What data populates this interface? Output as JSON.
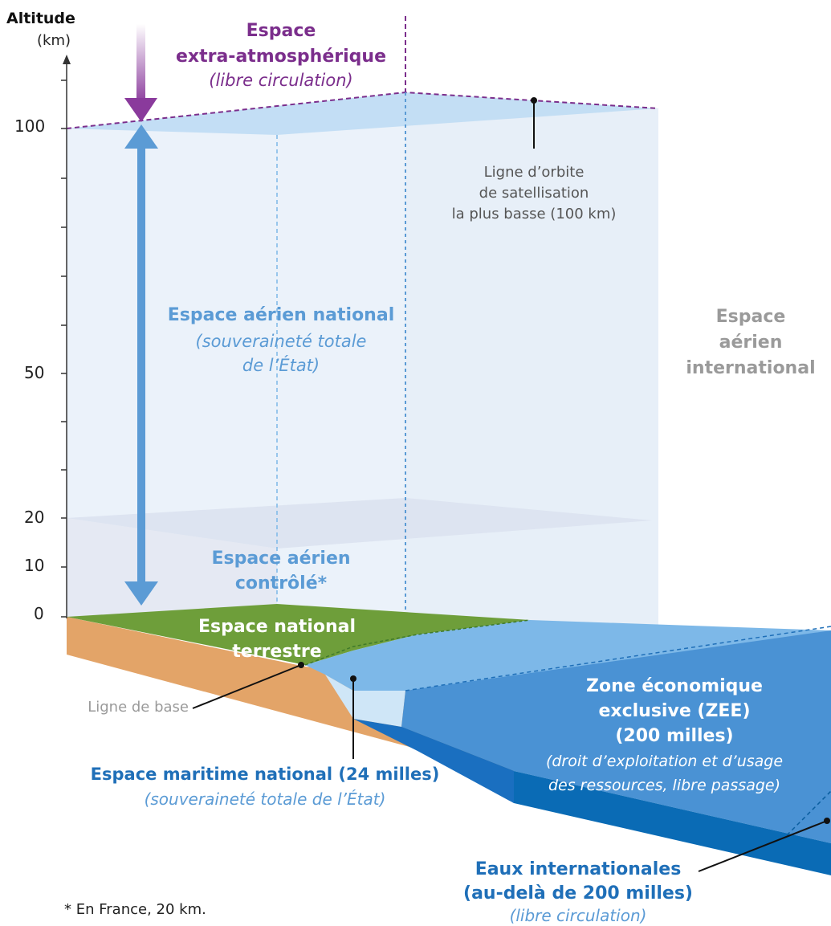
{
  "axis": {
    "title": "Altitude",
    "unit": "(km)",
    "ticks": [
      {
        "value": 100,
        "label": "100"
      },
      {
        "value": 50,
        "label": "50"
      },
      {
        "value": 20,
        "label": "20"
      },
      {
        "value": 10,
        "label": "10"
      },
      {
        "value": 0,
        "label": "0"
      }
    ]
  },
  "labels": {
    "space_title_1": "Espace",
    "space_title_2": "extra-atmosphérique",
    "space_note": "(libre circulation)",
    "orbit_1": "Ligne d’orbite",
    "orbit_2": "de satellisation",
    "orbit_3": "la plus basse (100 km)",
    "national_air_title": "Espace aérien national",
    "national_air_note_1": "(souveraineté totale",
    "national_air_note_2": "de l’État)",
    "intl_air_1": "Espace",
    "intl_air_2": "aérien",
    "intl_air_3": "international",
    "controlled_1": "Espace aérien",
    "controlled_2": "contrôlé*",
    "land_1": "Espace national",
    "land_2": "terrestre",
    "zee_1": "Zone économique",
    "zee_2": "exclusive (ZEE)",
    "zee_3": "(200 milles)",
    "zee_note_1": "(droit d’exploitation et d’usage",
    "zee_note_2": "des ressources, libre passage)",
    "baseline": "Ligne de base",
    "maritime_title": "Espace maritime national (24 milles)",
    "maritime_note": "(souveraineté totale de l’État)",
    "intl_waters_1": "Eaux internationales",
    "intl_waters_2": "(au-delà de 200 milles)",
    "intl_waters_note": "(libre circulation)",
    "footnote": "* En France, 20 km."
  },
  "colors": {
    "space": "#7b2e8c",
    "national_air": "#5b9bd5",
    "land": "#6e9e3a",
    "soil": "#e3a468",
    "sea_light": "#7db8e8",
    "sea_mid": "#4a92d4",
    "sea_dark": "#0a6bb5",
    "international": "#9a9a9a"
  }
}
